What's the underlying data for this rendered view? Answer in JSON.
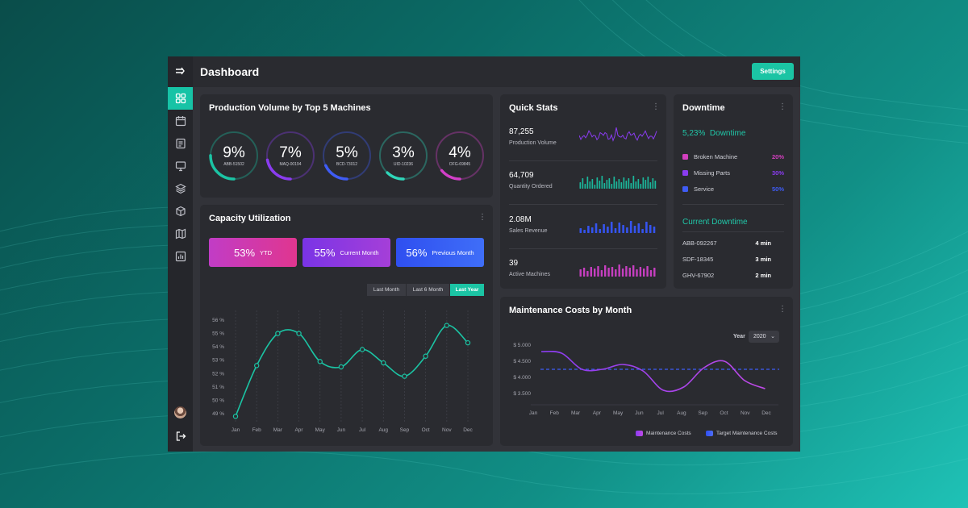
{
  "header": {
    "title": "Dashboard",
    "settings_label": "Settings"
  },
  "sidebar": {
    "items": [
      {
        "icon": "collapse-arrow-icon"
      },
      {
        "icon": "grid-icon",
        "active": true
      },
      {
        "icon": "calendar-icon"
      },
      {
        "icon": "document-icon"
      },
      {
        "icon": "monitor-icon"
      },
      {
        "icon": "layers-icon"
      },
      {
        "icon": "box-icon"
      },
      {
        "icon": "map-icon"
      },
      {
        "icon": "bar-chart-icon"
      }
    ],
    "bottom": [
      {
        "icon": "avatar"
      },
      {
        "icon": "logout-icon"
      }
    ]
  },
  "production": {
    "title": "Production Volume by Top 5 Machines",
    "machines": [
      {
        "pct": "9%",
        "id": "ABB-51502",
        "fraction": 0.25,
        "color": "#1bc4a4"
      },
      {
        "pct": "7%",
        "id": "MAQ-00194",
        "fraction": 0.22,
        "color": "#8a3cf0"
      },
      {
        "pct": "5%",
        "id": "BCD-73012",
        "fraction": 0.18,
        "color": "#3f5cf5"
      },
      {
        "pct": "3%",
        "id": "UID-10236",
        "fraction": 0.12,
        "color": "#2fd6b9"
      },
      {
        "pct": "4%",
        "id": "OFG-69845",
        "fraction": 0.14,
        "color": "#d33fc9"
      }
    ]
  },
  "capacity": {
    "title": "Capacity Utilization",
    "boxes": [
      {
        "value": "53%",
        "label": "YTD"
      },
      {
        "value": "55%",
        "label": "Current Month"
      },
      {
        "value": "56%",
        "label": "Previous Month"
      }
    ],
    "tabs": [
      "Last Month",
      "Last 6 Month",
      "Last Year"
    ],
    "active_tab": "Last Year"
  },
  "quick_stats": {
    "title": "Quick Stats",
    "items": [
      {
        "value": "87,255",
        "label": "Production Volume",
        "spark": "line",
        "color": "#8a3cf0"
      },
      {
        "value": "64,709",
        "label": "Quantity Ordered",
        "spark": "bar",
        "color": "#1bb89c"
      },
      {
        "value": "2.08M",
        "label": "Sales Revenue",
        "spark": "bar",
        "color": "#3554f0"
      },
      {
        "value": "39",
        "label": "Active Machines",
        "spark": "bar",
        "color": "#c63fc0"
      }
    ]
  },
  "downtime": {
    "title": "Downtime",
    "summary_value": "5,23%",
    "summary_label": "Downtime",
    "reasons": [
      {
        "name": "Broken Machine",
        "pct": "20%",
        "color": "#d23fbe"
      },
      {
        "name": "Missing Parts",
        "pct": "30%",
        "color": "#8a3cf0"
      },
      {
        "name": "Service",
        "pct": "50%",
        "color": "#3f5cf5"
      }
    ],
    "current_title": "Current Downtime",
    "current": [
      {
        "id": "ABB-092267",
        "time": "4 min"
      },
      {
        "id": "SDF-18345",
        "time": "3 min"
      },
      {
        "id": "GHV-67902",
        "time": "2 min"
      }
    ]
  },
  "maintenance": {
    "title": "Maintenance Costs by Month",
    "year_label": "Year",
    "year_value": "2020",
    "legend": [
      {
        "label": "Maintenance Costs",
        "color": "#8a3cf0"
      },
      {
        "label": "Target Maintenance Costs",
        "color": "#3f5cf5"
      }
    ]
  },
  "chart_data": [
    {
      "type": "line",
      "title": "",
      "x": [
        "Jan",
        "Feb",
        "Mar",
        "Apr",
        "May",
        "Jun",
        "Jul",
        "Aug",
        "Sep",
        "Oct",
        "Nov",
        "Dec"
      ],
      "yticks": [
        "49 %",
        "50 %",
        "51 %",
        "52 %",
        "53 %",
        "54 %",
        "55 %",
        "56 %"
      ],
      "ylim": [
        49,
        56
      ],
      "series": [
        {
          "values": [
            48.8,
            52.6,
            55.0,
            55.0,
            52.9,
            52.5,
            53.8,
            52.8,
            51.8,
            53.3,
            55.6,
            54.3
          ],
          "color": "#1bc4a4"
        }
      ],
      "grid": "vertical-dashed"
    },
    {
      "type": "line",
      "title": "",
      "x": [
        "Jan",
        "Feb",
        "Mar",
        "Apr",
        "May",
        "Jun",
        "Jul",
        "Aug",
        "Sep",
        "Oct",
        "Nov",
        "Dec"
      ],
      "yticks": [
        "$ 3.500",
        "$ 4.000",
        "$ 4.500",
        "$ 5.000"
      ],
      "ylim": [
        3250,
        5000
      ],
      "series": [
        {
          "name": "Maintenance Costs",
          "values": [
            4800,
            4750,
            4250,
            4250,
            4400,
            4200,
            3600,
            3700,
            4300,
            4500,
            3900,
            3650
          ],
          "color": "#8a3cf0"
        },
        {
          "name": "Target Maintenance Costs",
          "values": [
            4250,
            4250,
            4250,
            4250,
            4250,
            4250,
            4250,
            4250,
            4250,
            4250,
            4250,
            4250
          ],
          "color": "#3f5cf5",
          "style": "dashed"
        }
      ]
    }
  ]
}
